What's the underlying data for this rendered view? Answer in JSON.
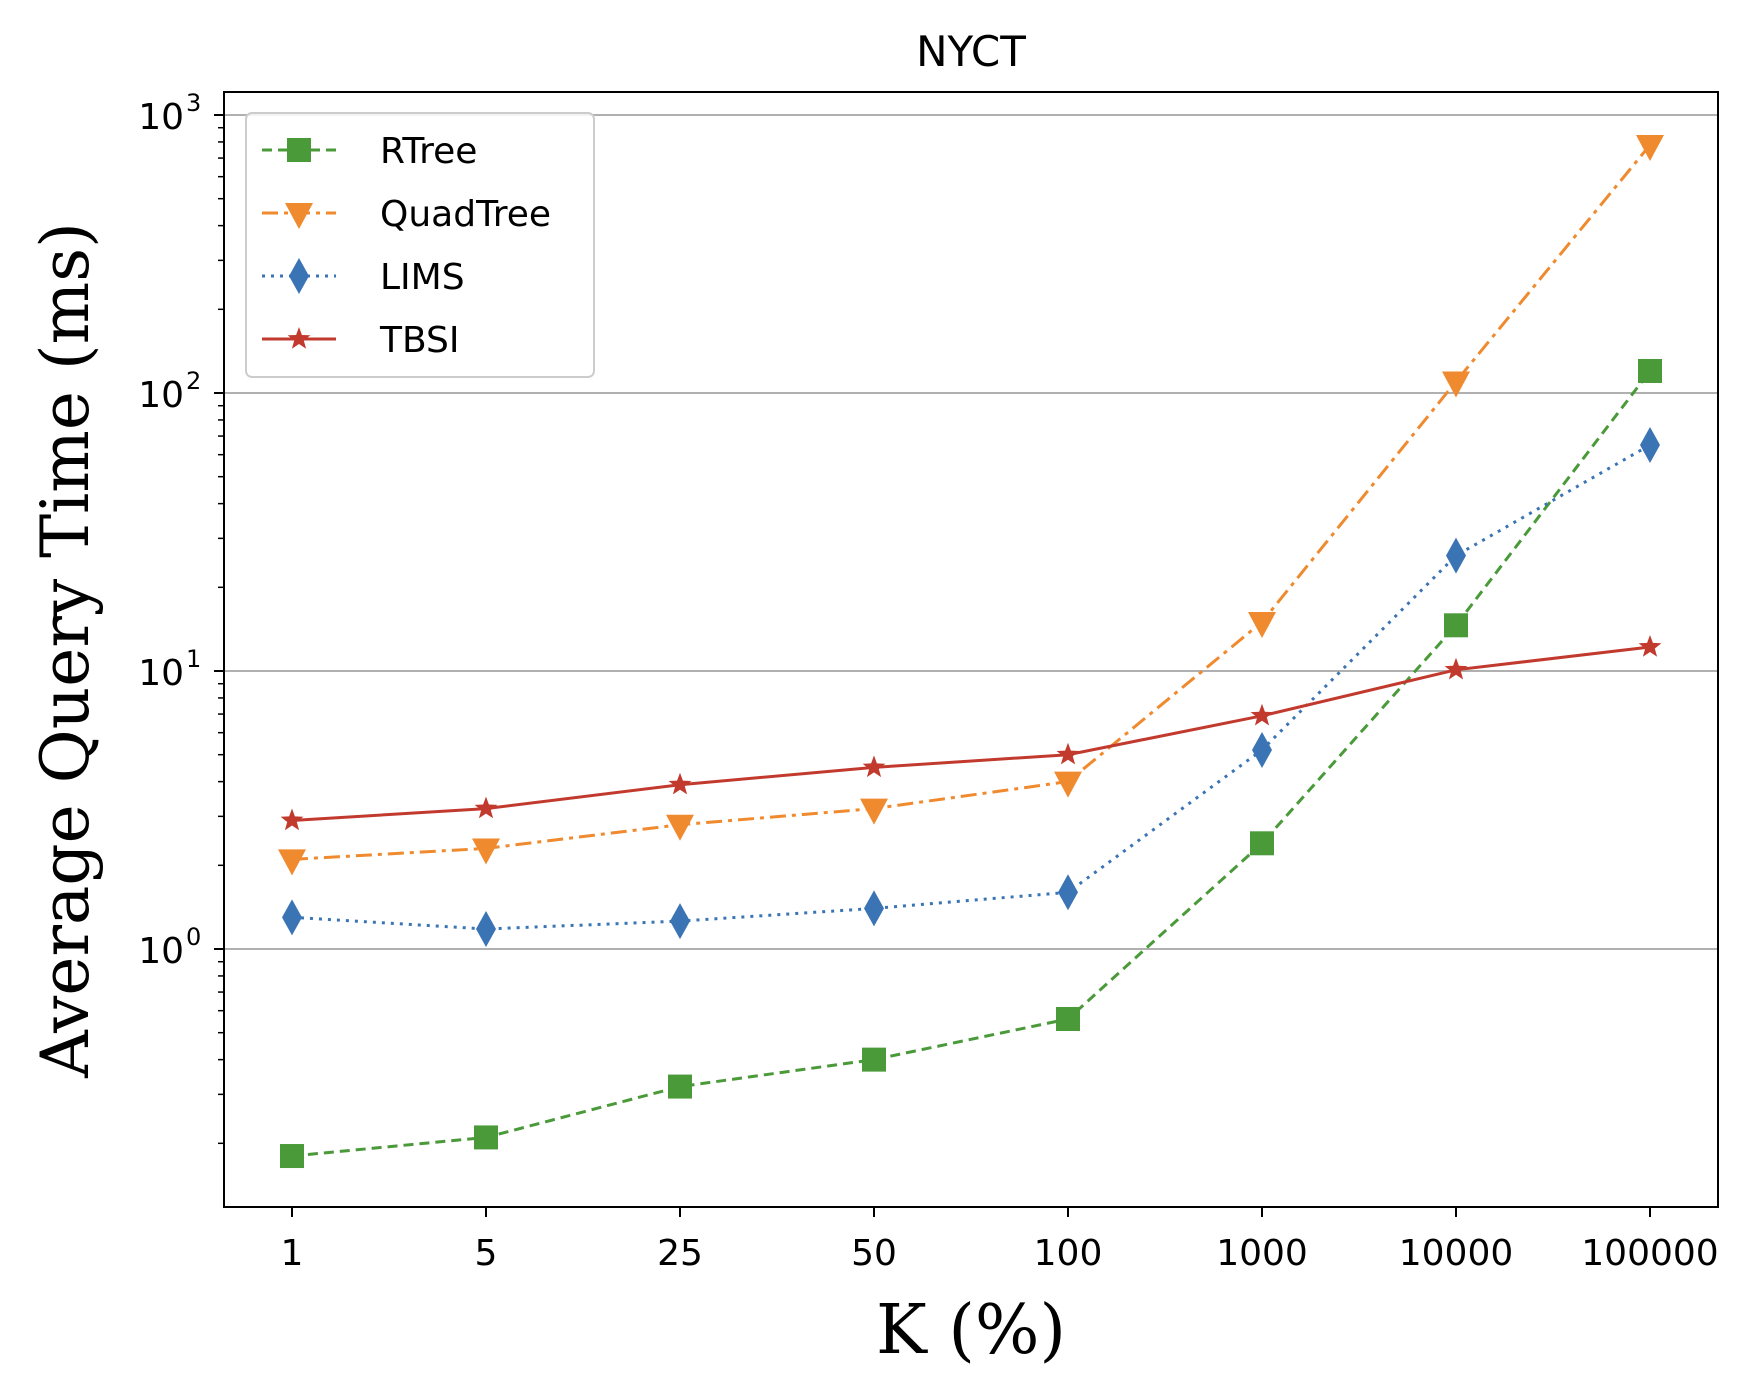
{
  "chart_data": {
    "type": "line",
    "title": "NYCT",
    "xlabel": "K (%)",
    "ylabel": "Average Query Time (ms)",
    "yscale": "log",
    "ylim": [
      0.13,
      1200
    ],
    "categories": [
      "1",
      "5",
      "25",
      "50",
      "100",
      "1000",
      "10000",
      "100000"
    ],
    "y_ticks": [
      {
        "value": 1,
        "base": "10",
        "exp": "0"
      },
      {
        "value": 10,
        "base": "10",
        "exp": "1"
      },
      {
        "value": 100,
        "base": "10",
        "exp": "2"
      },
      {
        "value": 1000,
        "base": "10",
        "exp": "3"
      }
    ],
    "grid": "y-major",
    "legend_position": "top-left",
    "series": [
      {
        "name": "RTree",
        "color": "#4a9a3a",
        "marker": "square",
        "dash": "dashed",
        "values": [
          0.18,
          0.21,
          0.32,
          0.4,
          0.56,
          2.4,
          14.6,
          120
        ]
      },
      {
        "name": "QuadTree",
        "color": "#f08a2e",
        "marker": "triangle-down",
        "dash": "dashdot",
        "values": [
          2.1,
          2.3,
          2.8,
          3.2,
          4.0,
          15,
          110,
          780
        ]
      },
      {
        "name": "LIMS",
        "color": "#3a74b4",
        "marker": "diamond",
        "dash": "dotted",
        "values": [
          1.3,
          1.18,
          1.26,
          1.4,
          1.6,
          5.2,
          26,
          65
        ]
      },
      {
        "name": "TBSI",
        "color": "#c23a2e",
        "marker": "star",
        "dash": "solid",
        "values": [
          2.9,
          3.2,
          3.9,
          4.5,
          5.0,
          6.9,
          10.1,
          12.2
        ]
      }
    ]
  }
}
